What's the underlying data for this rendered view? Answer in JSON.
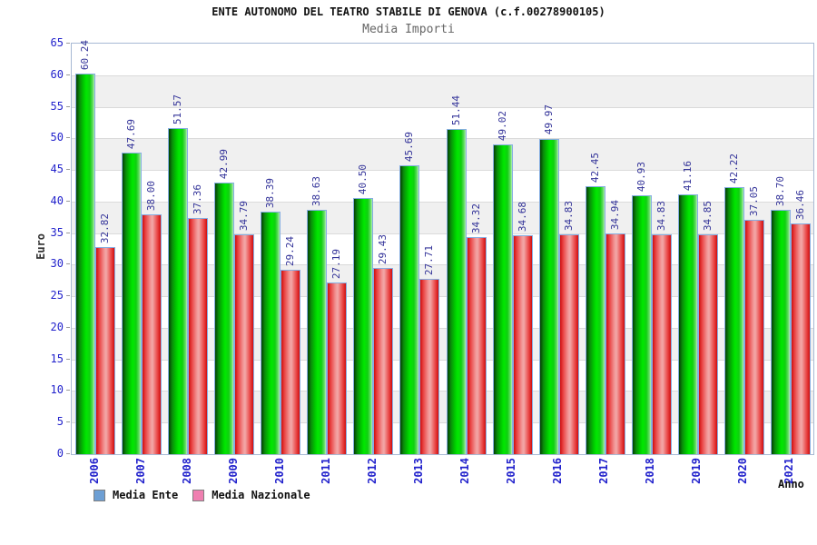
{
  "header": {
    "title": "ENTE AUTONOMO DEL TEATRO STABILE DI GENOVA (c.f.00278900105)",
    "subtitle": "Media Importi"
  },
  "chart_data": {
    "type": "bar",
    "title": "ENTE AUTONOMO DEL TEATRO STABILE DI GENOVA (c.f.00278900105)",
    "subtitle": "Media Importi",
    "categories": [
      "2006",
      "2007",
      "2008",
      "2009",
      "2010",
      "2011",
      "2012",
      "2013",
      "2014",
      "2015",
      "2016",
      "2017",
      "2018",
      "2019",
      "2020",
      "2021"
    ],
    "series": [
      {
        "name": "Media Ente",
        "values": [
          60.24,
          47.69,
          51.57,
          42.99,
          38.39,
          38.63,
          40.5,
          45.69,
          51.44,
          49.02,
          49.97,
          42.45,
          40.93,
          41.16,
          42.22,
          38.7
        ],
        "bar_color": "green",
        "legend_color": "#6d9fd4"
      },
      {
        "name": "Media Nazionale",
        "values": [
          32.82,
          38.0,
          37.36,
          34.79,
          29.24,
          27.19,
          29.43,
          27.71,
          34.32,
          34.68,
          34.83,
          34.94,
          34.83,
          34.85,
          37.05,
          36.46
        ],
        "bar_color": "red",
        "legend_color": "#ef7fb0"
      }
    ],
    "xlabel": "Anno",
    "ylabel": "Euro",
    "ylim": [
      0,
      65
    ],
    "ytick_step": 5,
    "grid": "horizontal-bands",
    "legend_position": "bottom-left",
    "value_labels": "rotated-90-above-bars"
  },
  "colors": {
    "axis_text": "#2222cc",
    "value_label": "#333399",
    "band_gray": "#f0f0f0",
    "gridline": "#dadada",
    "plot_border": "#a7b9d4"
  }
}
